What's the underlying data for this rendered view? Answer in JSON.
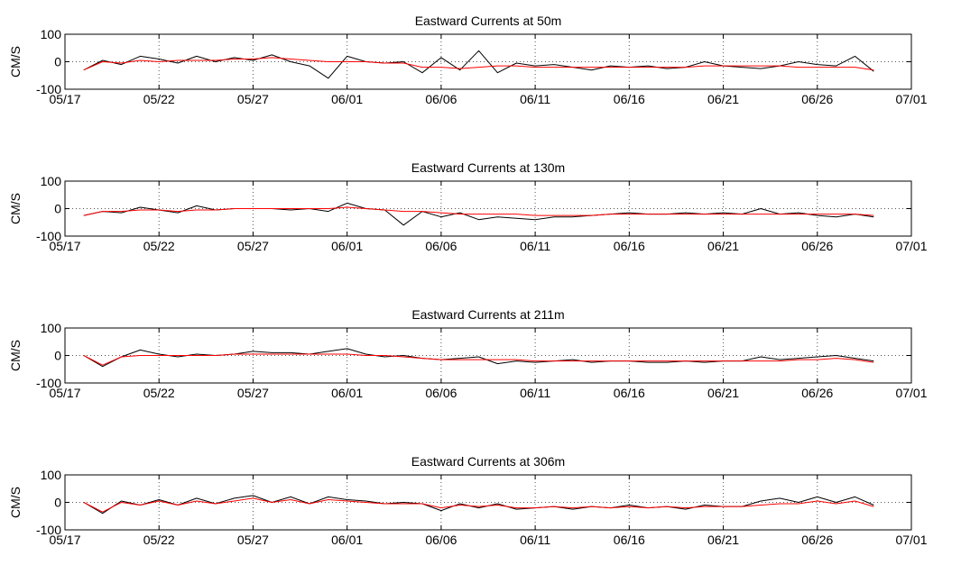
{
  "chart_data": [
    {
      "type": "line",
      "title": "Eastward Currents at 50m",
      "xlabel": "",
      "ylabel": "CM/S",
      "xlim": [
        "05/17",
        "07/01"
      ],
      "ylim": [
        -100,
        100
      ],
      "x_tick_labels": [
        "05/17",
        "05/22",
        "05/27",
        "06/01",
        "06/06",
        "06/11",
        "06/16",
        "06/21",
        "06/26",
        "07/01"
      ],
      "y_tick_labels": [
        "-100",
        "0",
        "100"
      ],
      "grid": "dotted",
      "zero_line": true,
      "x": [
        "05/18",
        "05/19",
        "05/20",
        "05/21",
        "05/22",
        "05/23",
        "05/24",
        "05/25",
        "05/26",
        "05/27",
        "05/28",
        "05/29",
        "05/30",
        "05/31",
        "06/01",
        "06/02",
        "06/03",
        "06/04",
        "06/05",
        "06/06",
        "06/07",
        "06/08",
        "06/09",
        "06/10",
        "06/11",
        "06/12",
        "06/13",
        "06/14",
        "06/15",
        "06/16",
        "06/17",
        "06/18",
        "06/19",
        "06/20",
        "06/21",
        "06/22",
        "06/23",
        "06/24",
        "06/25",
        "06/26",
        "06/27",
        "06/28",
        "06/29"
      ],
      "series": [
        {
          "color": "#000000",
          "values": [
            -30,
            5,
            -10,
            20,
            10,
            -5,
            20,
            0,
            15,
            5,
            25,
            0,
            -15,
            -60,
            20,
            0,
            -5,
            0,
            -40,
            15,
            -30,
            40,
            -40,
            -5,
            -15,
            -10,
            -20,
            -30,
            -15,
            -20,
            -15,
            -25,
            -20,
            0,
            -15,
            -20,
            -25,
            -15,
            0,
            -10,
            -15,
            20,
            -35
          ]
        },
        {
          "color": "#ff0000",
          "values": [
            -30,
            0,
            -5,
            5,
            0,
            5,
            5,
            5,
            10,
            10,
            15,
            10,
            5,
            0,
            0,
            0,
            -5,
            -5,
            -20,
            -20,
            -25,
            -20,
            -15,
            -15,
            -20,
            -20,
            -20,
            -20,
            -20,
            -20,
            -20,
            -20,
            -20,
            -15,
            -15,
            -15,
            -15,
            -15,
            -20,
            -20,
            -20,
            -20,
            -30
          ]
        }
      ]
    },
    {
      "type": "line",
      "title": "Eastward Currents at 130m",
      "xlabel": "",
      "ylabel": "CM/S",
      "xlim": [
        "05/17",
        "07/01"
      ],
      "ylim": [
        -100,
        100
      ],
      "x_tick_labels": [
        "05/17",
        "05/22",
        "05/27",
        "06/01",
        "06/06",
        "06/11",
        "06/16",
        "06/21",
        "06/26",
        "07/01"
      ],
      "y_tick_labels": [
        "-100",
        "0",
        "100"
      ],
      "grid": "dotted",
      "zero_line": true,
      "x": [
        "05/18",
        "05/19",
        "05/20",
        "05/21",
        "05/22",
        "05/23",
        "05/24",
        "05/25",
        "05/26",
        "05/27",
        "05/28",
        "05/29",
        "05/30",
        "05/31",
        "06/01",
        "06/02",
        "06/03",
        "06/04",
        "06/05",
        "06/06",
        "06/07",
        "06/08",
        "06/09",
        "06/10",
        "06/11",
        "06/12",
        "06/13",
        "06/14",
        "06/15",
        "06/16",
        "06/17",
        "06/18",
        "06/19",
        "06/20",
        "06/21",
        "06/22",
        "06/23",
        "06/24",
        "06/25",
        "06/26",
        "06/27",
        "06/28",
        "06/29"
      ],
      "series": [
        {
          "color": "#000000",
          "values": [
            -25,
            -10,
            -15,
            5,
            -5,
            -15,
            10,
            -5,
            0,
            0,
            0,
            -5,
            0,
            -10,
            20,
            0,
            -5,
            -60,
            -10,
            -30,
            -15,
            -40,
            -30,
            -35,
            -40,
            -30,
            -30,
            -25,
            -20,
            -15,
            -20,
            -20,
            -15,
            -20,
            -15,
            -20,
            0,
            -20,
            -15,
            -25,
            -30,
            -20,
            -30
          ]
        },
        {
          "color": "#ff0000",
          "values": [
            -25,
            -10,
            -10,
            -5,
            -5,
            -10,
            -5,
            -5,
            0,
            0,
            0,
            0,
            0,
            0,
            5,
            0,
            -5,
            -10,
            -10,
            -15,
            -20,
            -20,
            -20,
            -20,
            -25,
            -25,
            -25,
            -25,
            -20,
            -20,
            -20,
            -20,
            -20,
            -20,
            -20,
            -20,
            -20,
            -20,
            -20,
            -20,
            -20,
            -20,
            -25
          ]
        }
      ]
    },
    {
      "type": "line",
      "title": "Eastward Currents at 211m",
      "xlabel": "",
      "ylabel": "CM/S",
      "xlim": [
        "05/17",
        "07/01"
      ],
      "ylim": [
        -100,
        100
      ],
      "x_tick_labels": [
        "05/17",
        "05/22",
        "05/27",
        "06/01",
        "06/06",
        "06/11",
        "06/16",
        "06/21",
        "06/26",
        "07/01"
      ],
      "y_tick_labels": [
        "-100",
        "0",
        "100"
      ],
      "grid": "dotted",
      "zero_line": true,
      "x": [
        "05/18",
        "05/19",
        "05/20",
        "05/21",
        "05/22",
        "05/23",
        "05/24",
        "05/25",
        "05/26",
        "05/27",
        "05/28",
        "05/29",
        "05/30",
        "05/31",
        "06/01",
        "06/02",
        "06/03",
        "06/04",
        "06/05",
        "06/06",
        "06/07",
        "06/08",
        "06/09",
        "06/10",
        "06/11",
        "06/12",
        "06/13",
        "06/14",
        "06/15",
        "06/16",
        "06/17",
        "06/18",
        "06/19",
        "06/20",
        "06/21",
        "06/22",
        "06/23",
        "06/24",
        "06/25",
        "06/26",
        "06/27",
        "06/28",
        "06/29"
      ],
      "series": [
        {
          "color": "#000000",
          "values": [
            0,
            -40,
            -5,
            20,
            5,
            -5,
            5,
            0,
            5,
            15,
            10,
            10,
            5,
            15,
            25,
            5,
            -5,
            0,
            -10,
            -15,
            -10,
            -5,
            -30,
            -20,
            -25,
            -20,
            -15,
            -25,
            -20,
            -20,
            -25,
            -25,
            -20,
            -25,
            -20,
            -20,
            -5,
            -15,
            -10,
            -5,
            0,
            -10,
            -20
          ]
        },
        {
          "color": "#ff0000",
          "values": [
            0,
            -35,
            -5,
            0,
            0,
            0,
            0,
            0,
            5,
            5,
            5,
            5,
            5,
            5,
            5,
            0,
            0,
            -5,
            -10,
            -15,
            -15,
            -15,
            -15,
            -15,
            -20,
            -20,
            -20,
            -20,
            -20,
            -20,
            -20,
            -20,
            -20,
            -20,
            -20,
            -20,
            -20,
            -20,
            -15,
            -15,
            -10,
            -15,
            -25
          ]
        }
      ]
    },
    {
      "type": "line",
      "title": "Eastward Currents at 306m",
      "xlabel": "",
      "ylabel": "CM/S",
      "xlim": [
        "05/17",
        "07/01"
      ],
      "ylim": [
        -100,
        100
      ],
      "x_tick_labels": [
        "05/17",
        "05/22",
        "05/27",
        "06/01",
        "06/06",
        "06/11",
        "06/16",
        "06/21",
        "06/26",
        "07/01"
      ],
      "y_tick_labels": [
        "-100",
        "0",
        "100"
      ],
      "grid": "dotted",
      "zero_line": true,
      "x": [
        "05/18",
        "05/19",
        "05/20",
        "05/21",
        "05/22",
        "05/23",
        "05/24",
        "05/25",
        "05/26",
        "05/27",
        "05/28",
        "05/29",
        "05/30",
        "05/31",
        "06/01",
        "06/02",
        "06/03",
        "06/04",
        "06/05",
        "06/06",
        "06/07",
        "06/08",
        "06/09",
        "06/10",
        "06/11",
        "06/12",
        "06/13",
        "06/14",
        "06/15",
        "06/16",
        "06/17",
        "06/18",
        "06/19",
        "06/20",
        "06/21",
        "06/22",
        "06/23",
        "06/24",
        "06/25",
        "06/26",
        "06/27",
        "06/28",
        "06/29"
      ],
      "series": [
        {
          "color": "#000000",
          "values": [
            0,
            -40,
            5,
            -10,
            10,
            -10,
            15,
            -5,
            15,
            25,
            0,
            20,
            -5,
            20,
            10,
            5,
            -5,
            0,
            -5,
            -30,
            -5,
            -20,
            -5,
            -25,
            -20,
            -15,
            -25,
            -15,
            -20,
            -10,
            -20,
            -15,
            -25,
            -10,
            -15,
            -15,
            5,
            15,
            0,
            20,
            0,
            20,
            -10
          ]
        },
        {
          "color": "#ff0000",
          "values": [
            0,
            -35,
            0,
            -10,
            5,
            -10,
            5,
            -5,
            5,
            15,
            0,
            10,
            -5,
            10,
            5,
            0,
            -5,
            -5,
            -5,
            -20,
            -10,
            -15,
            -10,
            -20,
            -20,
            -15,
            -20,
            -15,
            -20,
            -15,
            -20,
            -15,
            -20,
            -15,
            -15,
            -15,
            -10,
            -5,
            -5,
            5,
            -5,
            5,
            -15
          ]
        }
      ]
    }
  ]
}
